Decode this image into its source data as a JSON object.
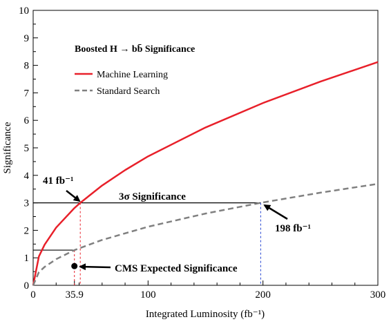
{
  "chart_data": {
    "type": "line",
    "title": "Boosted H → bb̄ Significance",
    "xlabel": "Integrated Luminosity (fb⁻¹)",
    "ylabel": "Significance",
    "xlim": [
      0,
      300
    ],
    "ylim": [
      0,
      10
    ],
    "xticks": [
      "0",
      "35.9",
      "100",
      "200",
      "300"
    ],
    "xtick_values": [
      0,
      35.9,
      100,
      200,
      300
    ],
    "yticks": [
      "0",
      "1",
      "2",
      "3",
      "4",
      "5",
      "6",
      "7",
      "8",
      "9",
      "10"
    ],
    "grid": false,
    "legend_position": "top-left",
    "series": [
      {
        "name": "Machine Learning",
        "color": "#e8202a",
        "style": "solid",
        "x": [
          0,
          5,
          10,
          20,
          35.9,
          41,
          60,
          80,
          100,
          150,
          200,
          250,
          300
        ],
        "y": [
          0,
          1.05,
          1.48,
          2.1,
          2.81,
          3.0,
          3.63,
          4.19,
          4.69,
          5.74,
          6.63,
          7.41,
          8.12
        ]
      },
      {
        "name": "Standard Search",
        "color": "#808080",
        "style": "dashed",
        "x": [
          0,
          5,
          10,
          20,
          35.9,
          60,
          100,
          150,
          198,
          250,
          300
        ],
        "y": [
          0,
          0.48,
          0.67,
          0.95,
          1.28,
          1.65,
          2.13,
          2.61,
          3.0,
          3.37,
          3.69
        ]
      }
    ],
    "reference_lines": {
      "sigma3_label": "3σ Significance",
      "sigma3_value": 3,
      "cms_level": 1.28,
      "ml_crossing_x": 41,
      "ss_crossing_x": 198,
      "cms_x": 35.9,
      "ml_crossing_color": "#e8202a",
      "ss_crossing_color": "#1f3fd1"
    },
    "annotations": [
      {
        "id": "ml",
        "text": "41 fb⁻¹"
      },
      {
        "id": "ss",
        "text": "198 fb⁻¹"
      },
      {
        "id": "cms",
        "text": "CMS Expected Significance"
      }
    ],
    "cms_point": {
      "x": 35.9,
      "y": 0.7
    }
  }
}
